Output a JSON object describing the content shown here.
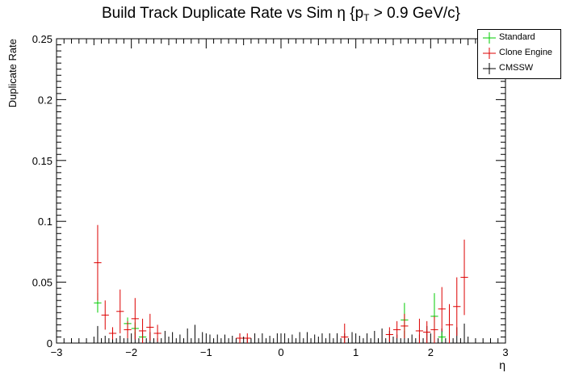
{
  "chart_data": {
    "type": "scatter",
    "title_main": "Build Track Duplicate Rate vs Sim η {p",
    "title_sub": "T",
    "title_end": " > 0.9 GeV/c}",
    "xlabel": "η",
    "ylabel": "Duplicate Rate",
    "xlim": [
      -3,
      3
    ],
    "ylim": [
      0,
      0.25
    ],
    "x_ticks": [
      "−3",
      "−2",
      "−1",
      "0",
      "1",
      "2",
      "3"
    ],
    "y_ticks": [
      "0",
      "0.05",
      "0.1",
      "0.15",
      "0.2",
      "0.25"
    ],
    "legend_position": "top-right",
    "bin_half_width": 0.05,
    "series": [
      {
        "name": "Standard",
        "color": "#00cc00",
        "points": [
          [
            -2.45,
            0.033,
            0.008
          ],
          [
            -2.05,
            0.016,
            0.005
          ],
          [
            -1.95,
            0.012,
            0.005
          ],
          [
            -1.85,
            0.005,
            0.003
          ],
          [
            1.65,
            0.019,
            0.014
          ],
          [
            2.05,
            0.022,
            0.019
          ],
          [
            2.15,
            0.005,
            0.004
          ]
        ]
      },
      {
        "name": "Clone Engine",
        "color": "#dd0000",
        "points": [
          [
            -2.45,
            0.066,
            0.031
          ],
          [
            -2.35,
            0.023,
            0.012
          ],
          [
            -2.25,
            0.008,
            0.005
          ],
          [
            -2.15,
            0.026,
            0.018
          ],
          [
            -2.05,
            0.011,
            0.007
          ],
          [
            -1.95,
            0.02,
            0.017
          ],
          [
            -1.85,
            0.01,
            0.01
          ],
          [
            -1.75,
            0.013,
            0.011
          ],
          [
            -1.65,
            0.008,
            0.007
          ],
          [
            -0.55,
            0.004,
            0.004
          ],
          [
            -0.45,
            0.004,
            0.004
          ],
          [
            0.85,
            0.005,
            0.011
          ],
          [
            1.45,
            0.007,
            0.006
          ],
          [
            1.55,
            0.011,
            0.007
          ],
          [
            1.65,
            0.014,
            0.01
          ],
          [
            1.85,
            0.01,
            0.01
          ],
          [
            1.95,
            0.009,
            0.009
          ],
          [
            2.05,
            0.011,
            0.011
          ],
          [
            2.15,
            0.028,
            0.018
          ],
          [
            2.25,
            0.015,
            0.017
          ],
          [
            2.35,
            0.03,
            0.024
          ],
          [
            2.45,
            0.054,
            0.031
          ]
        ]
      },
      {
        "name": "CMSSW",
        "color": "#000000",
        "points": [
          [
            -2.45,
            0.014,
            0.0
          ],
          [
            -2.35,
            0.006,
            0.0
          ],
          [
            -2.25,
            0.008,
            0.0
          ],
          [
            -2.15,
            0.006,
            0.0
          ],
          [
            -2.05,
            0.004,
            0.0
          ],
          [
            -1.95,
            0.009,
            0.0
          ],
          [
            -1.85,
            0.009,
            0.0
          ],
          [
            -1.75,
            0.009,
            0.0
          ],
          [
            -1.65,
            0.004,
            0.0
          ],
          [
            -1.55,
            0.01,
            0.0
          ],
          [
            -1.45,
            0.009,
            0.0
          ],
          [
            -1.35,
            0.007,
            0.0
          ],
          [
            -1.25,
            0.012,
            0.0
          ],
          [
            -1.15,
            0.015,
            0.0
          ],
          [
            -1.05,
            0.009,
            0.0
          ],
          [
            -0.95,
            0.007,
            0.0
          ],
          [
            -0.85,
            0.007,
            0.0
          ],
          [
            -0.75,
            0.007,
            0.0
          ],
          [
            -0.65,
            0.006,
            0.0
          ],
          [
            -0.55,
            0.008,
            0.0
          ],
          [
            -0.45,
            0.004,
            0.0
          ],
          [
            -0.35,
            0.008,
            0.0
          ],
          [
            -0.25,
            0.008,
            0.0
          ],
          [
            -0.15,
            0.006,
            0.0
          ],
          [
            -0.05,
            0.008,
            0.0
          ],
          [
            0.05,
            0.008,
            0.0
          ],
          [
            0.15,
            0.007,
            0.0
          ],
          [
            0.25,
            0.009,
            0.0
          ],
          [
            0.35,
            0.009,
            0.0
          ],
          [
            0.45,
            0.007,
            0.0
          ],
          [
            0.55,
            0.008,
            0.0
          ],
          [
            0.65,
            0.008,
            0.0
          ],
          [
            0.75,
            0.008,
            0.0
          ],
          [
            0.85,
            0.008,
            0.0
          ],
          [
            0.95,
            0.009,
            0.0
          ],
          [
            1.05,
            0.006,
            0.0
          ],
          [
            1.15,
            0.008,
            0.0
          ],
          [
            1.25,
            0.01,
            0.0
          ],
          [
            1.35,
            0.012,
            0.0
          ],
          [
            1.45,
            0.01,
            0.0
          ],
          [
            1.55,
            0.007,
            0.0
          ],
          [
            1.65,
            0.01,
            0.0
          ],
          [
            1.75,
            0.007,
            0.0
          ],
          [
            1.85,
            0.007,
            0.0
          ],
          [
            1.95,
            0.014,
            0.0
          ],
          [
            2.05,
            0.006,
            0.0
          ],
          [
            2.15,
            0.012,
            0.0
          ],
          [
            2.25,
            0.016,
            0.0
          ],
          [
            2.35,
            0.013,
            0.0
          ],
          [
            2.45,
            0.016,
            0.0
          ]
        ]
      }
    ]
  }
}
